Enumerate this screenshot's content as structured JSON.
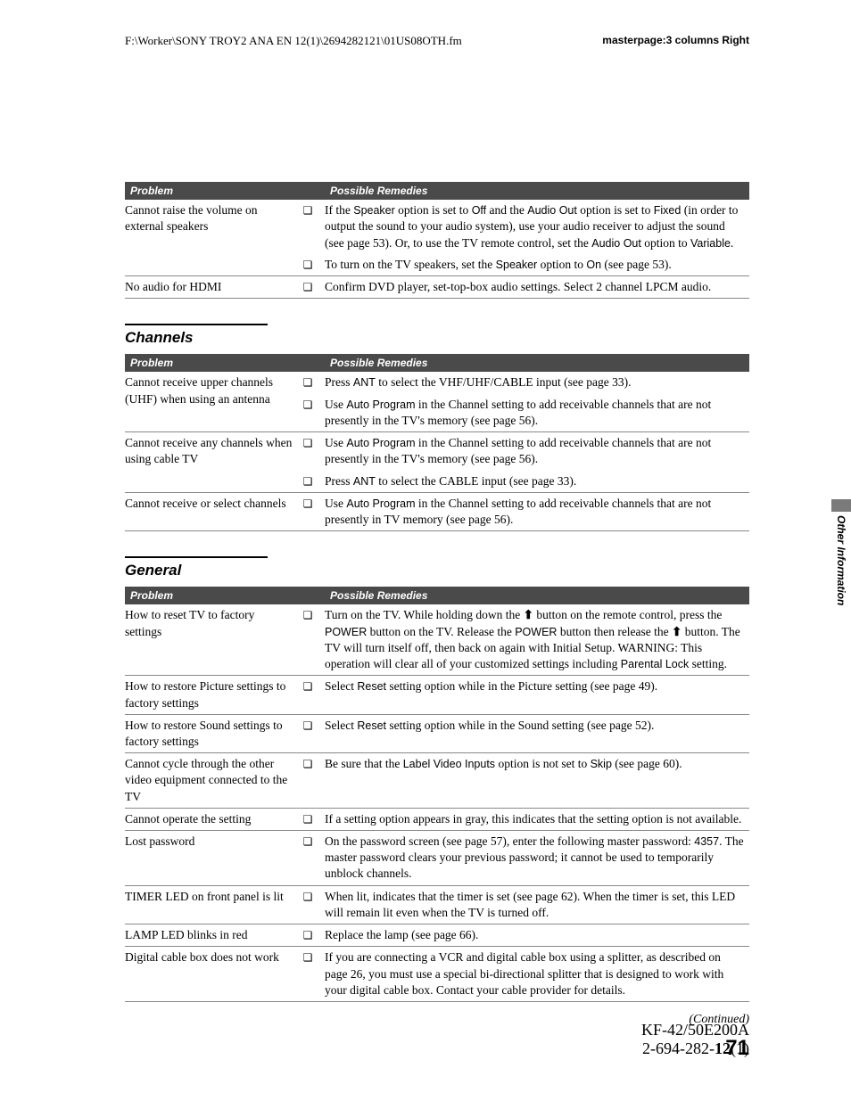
{
  "header": {
    "path": "F:\\Worker\\SONY TROY2 ANA EN 12(1)\\2694282121\\01US08OTH.fm",
    "masterpage": "masterpage:3 columns Right"
  },
  "table1_header": {
    "col1": "Problem",
    "col2": "Possible Remedies"
  },
  "table1": {
    "r1_problem": "Cannot raise the volume on external speakers",
    "r1_remedy1_pre": "If the ",
    "r1_remedy1_s1": "Speaker",
    "r1_remedy1_mid1": " option is set to ",
    "r1_remedy1_s2": "Off",
    "r1_remedy1_mid2": " and the ",
    "r1_remedy1_s3": "Audio Out",
    "r1_remedy1_mid3": " option is set to ",
    "r1_remedy1_s4": "Fixed",
    "r1_remedy1_mid4": " (in order to output the sound to your audio system), use your audio receiver to adjust the sound (see page 53). Or, to use the TV remote control, set the ",
    "r1_remedy1_s5": "Audio Out",
    "r1_remedy1_mid5": " option to ",
    "r1_remedy1_s6": "Variable",
    "r1_remedy1_end": ".",
    "r1_remedy2_pre": "To turn on the TV speakers, set the ",
    "r1_remedy2_s1": "Speaker",
    "r1_remedy2_mid1": " option to ",
    "r1_remedy2_s2": "On",
    "r1_remedy2_end": " (see page 53).",
    "r2_problem": "No audio for HDMI",
    "r2_remedy": "Confirm DVD player, set-top-box audio settings. Select 2 channel LPCM audio."
  },
  "section_channels": "Channels",
  "table2_header": {
    "col1": "Problem",
    "col2": "Possible Remedies"
  },
  "table2": {
    "r1_problem": "Cannot receive upper channels (UHF) when using an antenna",
    "r1_remedy1_pre": "Press ",
    "r1_remedy1_s1": "ANT",
    "r1_remedy1_end": " to select the VHF/UHF/CABLE input (see page 33).",
    "r1_remedy2_pre": "Use ",
    "r1_remedy2_s1": "Auto Program",
    "r1_remedy2_end": " in the Channel setting to add receivable channels that are not presently in the TV's memory (see page 56).",
    "r2_problem": "Cannot receive any channels when using cable TV",
    "r2_remedy1_pre": "Use ",
    "r2_remedy1_s1": "Auto Program",
    "r2_remedy1_end": " in the Channel setting to add receivable channels that are not presently in the TV's memory (see page 56).",
    "r2_remedy2_pre": "Press ",
    "r2_remedy2_s1": "ANT",
    "r2_remedy2_end": " to select the CABLE input (see page 33).",
    "r3_problem": "Cannot receive or select channels",
    "r3_remedy_pre": "Use ",
    "r3_remedy_s1": "Auto Program",
    "r3_remedy_end": " in the Channel setting to add receivable channels that are not presently in TV memory (see page 56)."
  },
  "section_general": "General",
  "table3_header": {
    "col1": "Problem",
    "col2": "Possible Remedies"
  },
  "table3": {
    "r1_problem": "How to reset TV to factory settings",
    "r1_pre": "Turn on the TV. While holding down the ",
    "r1_mid1": " button on the remote control, press the ",
    "r1_s1": "POWER",
    "r1_mid2": " button on the TV. Release the ",
    "r1_s2": "POWER",
    "r1_mid3": " button then release the ",
    "r1_mid4": " button. The TV will turn itself off, then back on again with Initial Setup. WARNING: This operation will clear all of your customized settings including ",
    "r1_s3": "Parental Lock",
    "r1_end": " setting.",
    "r2_problem": "How to restore Picture settings to factory settings",
    "r2_pre": "Select ",
    "r2_s1": "Reset",
    "r2_end": " setting option while in the Picture setting (see page 49).",
    "r3_problem": "How to restore Sound settings to factory settings",
    "r3_pre": "Select ",
    "r3_s1": "Reset",
    "r3_end": " setting option while in the Sound setting (see page 52).",
    "r4_problem": "Cannot cycle through the other video equipment connected to the TV",
    "r4_pre": "Be sure that the ",
    "r4_s1": "Label Video Inputs",
    "r4_mid": " option is not set to ",
    "r4_s2": "Skip",
    "r4_end": " (see page 60).",
    "r5_problem": "Cannot operate the setting",
    "r5_remedy": "If a setting option appears in gray, this indicates that the setting option is not available.",
    "r6_problem": "Lost password",
    "r6_pre": "On the password screen (see page 57), enter the following master password: ",
    "r6_s1": "4357",
    "r6_end": ". The master password clears your previous password; it cannot be used to temporarily unblock channels.",
    "r7_problem": "TIMER LED on front panel is lit",
    "r7_remedy": "When lit, indicates that the timer is set (see page 62). When the timer is set, this LED will remain lit even when the TV is turned off.",
    "r8_problem": "LAMP LED blinks in red",
    "r8_remedy": "Replace the lamp (see page 66).",
    "r9_problem": "Digital cable box does not work",
    "r9_remedy": "If you are connecting a VCR and digital cable box using a splitter, as described on page 26, you must use a special bi-directional splitter that is designed to work with your digital cable box. Contact your cable provider for details."
  },
  "continued": "(Continued)",
  "page_number": "71",
  "side_label": "Other Information",
  "footer": {
    "model": "KF-42/50E200A",
    "doc_pre": "2-694-282-",
    "doc_bold": "12",
    "doc_post": "(1)"
  },
  "glyphs": {
    "bullet": "❏",
    "up_arrow": "✦"
  }
}
